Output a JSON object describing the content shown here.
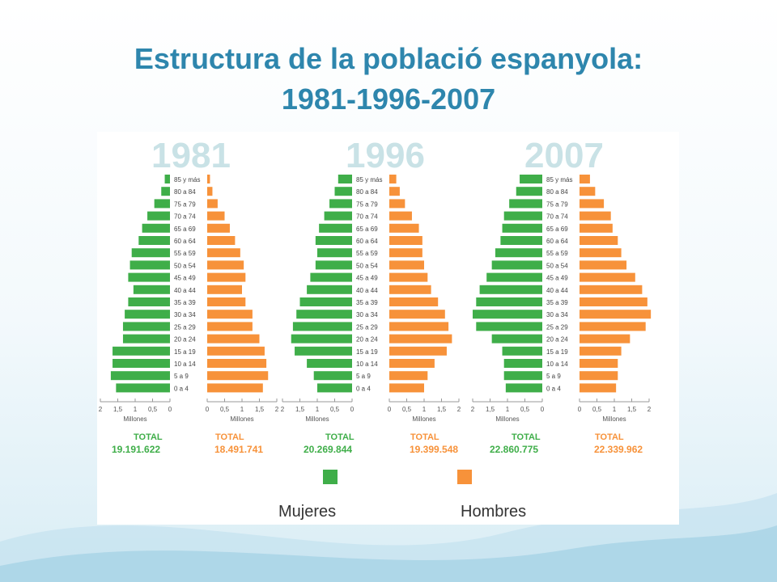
{
  "slide": {
    "title_line1": "Estructura de la població espanyola:",
    "title_line2": "1981-1996-2007"
  },
  "colors": {
    "title": "#2e86ad",
    "women": "#3fae49",
    "men": "#f7923a",
    "year_label": "#c9e2e6",
    "total": "#3fae49"
  },
  "chart_data": {
    "type": "bar",
    "orientation": "horizontal",
    "categories": [
      "85 y más",
      "80 a 84",
      "75 a 79",
      "70 a 74",
      "65 a 69",
      "60 a 64",
      "55 a 59",
      "50 a 54",
      "45 a 49",
      "40 a 44",
      "35 a 39",
      "30 a 34",
      "25 a 29",
      "20 a 24",
      "15 a 19",
      "10 a 14",
      "5 a 9",
      "0 a 4"
    ],
    "x_unit_label": "Millones",
    "women_ticks": [
      "2",
      "1,5",
      "1",
      "0,5",
      "0"
    ],
    "men_ticks": [
      "0",
      "0,5",
      "1",
      "1,5",
      "2"
    ],
    "xlim": [
      0,
      2
    ],
    "legend": {
      "women": "Mujeres",
      "men": "Hombres"
    },
    "pyramids": [
      {
        "year": "1981",
        "women_total_label": "TOTAL",
        "women_total": "19.191.622",
        "men_total_label": "TOTAL",
        "men_total": "18.491.741",
        "women": [
          0.15,
          0.25,
          0.45,
          0.65,
          0.8,
          0.9,
          1.1,
          1.15,
          1.2,
          1.05,
          1.2,
          1.3,
          1.35,
          1.35,
          1.65,
          1.65,
          1.7,
          1.55
        ],
        "men": [
          0.08,
          0.15,
          0.3,
          0.5,
          0.65,
          0.8,
          0.95,
          1.05,
          1.1,
          1.0,
          1.1,
          1.3,
          1.3,
          1.5,
          1.65,
          1.7,
          1.75,
          1.6
        ]
      },
      {
        "year": "1996",
        "women_total_label": "TOTAL",
        "women_total": "20.269.844",
        "men_total_label": "TOTAL",
        "men_total": "19.399.548",
        "women": [
          0.4,
          0.5,
          0.65,
          0.8,
          0.95,
          1.05,
          1.0,
          1.05,
          1.2,
          1.3,
          1.5,
          1.6,
          1.7,
          1.75,
          1.65,
          1.3,
          1.1,
          1.0
        ],
        "men": [
          0.2,
          0.3,
          0.45,
          0.65,
          0.85,
          0.95,
          0.95,
          1.0,
          1.1,
          1.2,
          1.4,
          1.6,
          1.7,
          1.8,
          1.65,
          1.3,
          1.1,
          1.0
        ]
      },
      {
        "year": "2007",
        "women_total_label": "TOTAL",
        "women_total": "22.860.775",
        "men_total_label": "TOTAL",
        "men_total": "22.339.962",
        "women": [
          0.65,
          0.75,
          0.95,
          1.1,
          1.15,
          1.2,
          1.35,
          1.45,
          1.6,
          1.8,
          1.9,
          2.0,
          1.9,
          1.45,
          1.15,
          1.1,
          1.1,
          1.05
        ],
        "men": [
          0.3,
          0.45,
          0.7,
          0.9,
          0.95,
          1.1,
          1.2,
          1.35,
          1.6,
          1.8,
          1.95,
          2.05,
          1.9,
          1.45,
          1.2,
          1.1,
          1.1,
          1.05
        ]
      }
    ]
  }
}
